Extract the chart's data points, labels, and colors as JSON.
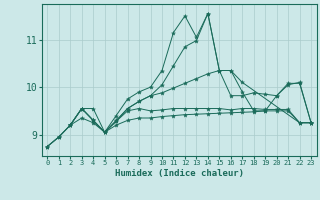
{
  "xlabel": "Humidex (Indice chaleur)",
  "ylabel": "",
  "xlim": [
    -0.5,
    23.5
  ],
  "ylim": [
    8.55,
    11.75
  ],
  "yticks": [
    9,
    10,
    11
  ],
  "xticks": [
    0,
    1,
    2,
    3,
    4,
    5,
    6,
    7,
    8,
    9,
    10,
    11,
    12,
    13,
    14,
    15,
    16,
    17,
    18,
    19,
    20,
    21,
    22,
    23
  ],
  "bg_color": "#cce8e8",
  "line_color": "#1a6b5a",
  "grid_color": "#aacccc",
  "lines": [
    {
      "x": [
        0,
        1,
        2,
        3,
        4,
        5,
        6,
        7,
        8,
        9,
        10,
        11,
        12,
        13,
        14,
        15,
        16,
        17,
        22,
        23
      ],
      "y": [
        8.75,
        8.95,
        9.2,
        9.55,
        9.55,
        9.05,
        9.4,
        9.75,
        9.9,
        10.0,
        10.35,
        11.15,
        11.5,
        11.05,
        11.55,
        10.35,
        10.35,
        10.1,
        9.25,
        9.25
      ]
    },
    {
      "x": [
        0,
        1,
        2,
        3,
        4,
        5,
        6,
        7,
        8,
        9,
        10,
        11,
        12,
        13,
        14,
        15,
        16,
        17,
        18,
        19,
        20,
        21,
        22,
        23
      ],
      "y": [
        8.75,
        8.95,
        9.2,
        9.35,
        9.25,
        9.05,
        9.2,
        9.3,
        9.35,
        9.35,
        9.38,
        9.4,
        9.42,
        9.43,
        9.44,
        9.45,
        9.46,
        9.47,
        9.48,
        9.5,
        9.5,
        9.5,
        9.25,
        9.25
      ]
    },
    {
      "x": [
        0,
        1,
        2,
        3,
        4,
        5,
        6,
        7,
        8,
        9,
        10,
        11,
        12,
        13,
        14,
        15,
        16,
        17,
        18,
        19,
        20,
        21,
        22,
        23
      ],
      "y": [
        8.75,
        8.95,
        9.2,
        9.55,
        9.3,
        9.05,
        9.28,
        9.5,
        9.55,
        9.5,
        9.52,
        9.55,
        9.55,
        9.55,
        9.55,
        9.55,
        9.52,
        9.55,
        9.55,
        9.53,
        9.53,
        9.53,
        9.25,
        9.25
      ]
    },
    {
      "x": [
        2,
        3,
        4,
        5,
        6,
        7,
        8,
        9,
        10,
        11,
        12,
        13,
        14,
        15,
        16,
        17,
        18,
        19,
        20,
        21,
        22,
        23
      ],
      "y": [
        9.2,
        9.55,
        9.3,
        9.05,
        9.3,
        9.55,
        9.7,
        9.82,
        10.05,
        10.45,
        10.85,
        10.98,
        11.55,
        10.35,
        10.35,
        9.9,
        9.5,
        9.5,
        9.82,
        10.05,
        10.1,
        9.25
      ]
    },
    {
      "x": [
        2,
        3,
        4,
        5,
        6,
        7,
        8,
        9,
        10,
        11,
        12,
        13,
        14,
        15,
        16,
        17,
        18,
        19,
        20,
        21,
        22,
        23
      ],
      "y": [
        9.2,
        9.55,
        9.3,
        9.05,
        9.28,
        9.55,
        9.7,
        9.82,
        9.88,
        9.98,
        10.08,
        10.18,
        10.28,
        10.35,
        9.82,
        9.82,
        9.88,
        9.85,
        9.82,
        10.08,
        10.08,
        9.25
      ]
    }
  ]
}
